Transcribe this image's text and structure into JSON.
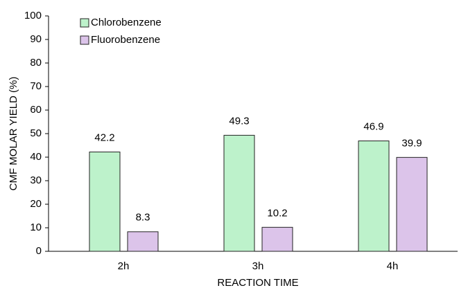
{
  "chart_data": {
    "type": "bar",
    "categories": [
      "2h",
      "3h",
      "4h"
    ],
    "series": [
      {
        "name": "Chlorobenzene",
        "color": "#bdf2cb",
        "values": [
          42.2,
          49.3,
          46.9
        ]
      },
      {
        "name": "Fluorobenzene",
        "color": "#dcc4ea",
        "values": [
          8.3,
          10.2,
          39.9
        ]
      }
    ],
    "xlabel": "REACTION TIME",
    "ylabel": "CMF MOLAR YIELD (%)",
    "ylim": [
      0,
      100
    ],
    "yticks": [
      0,
      10,
      20,
      30,
      40,
      50,
      60,
      70,
      80,
      90,
      100
    ],
    "grid": false,
    "legend": "upper left"
  }
}
